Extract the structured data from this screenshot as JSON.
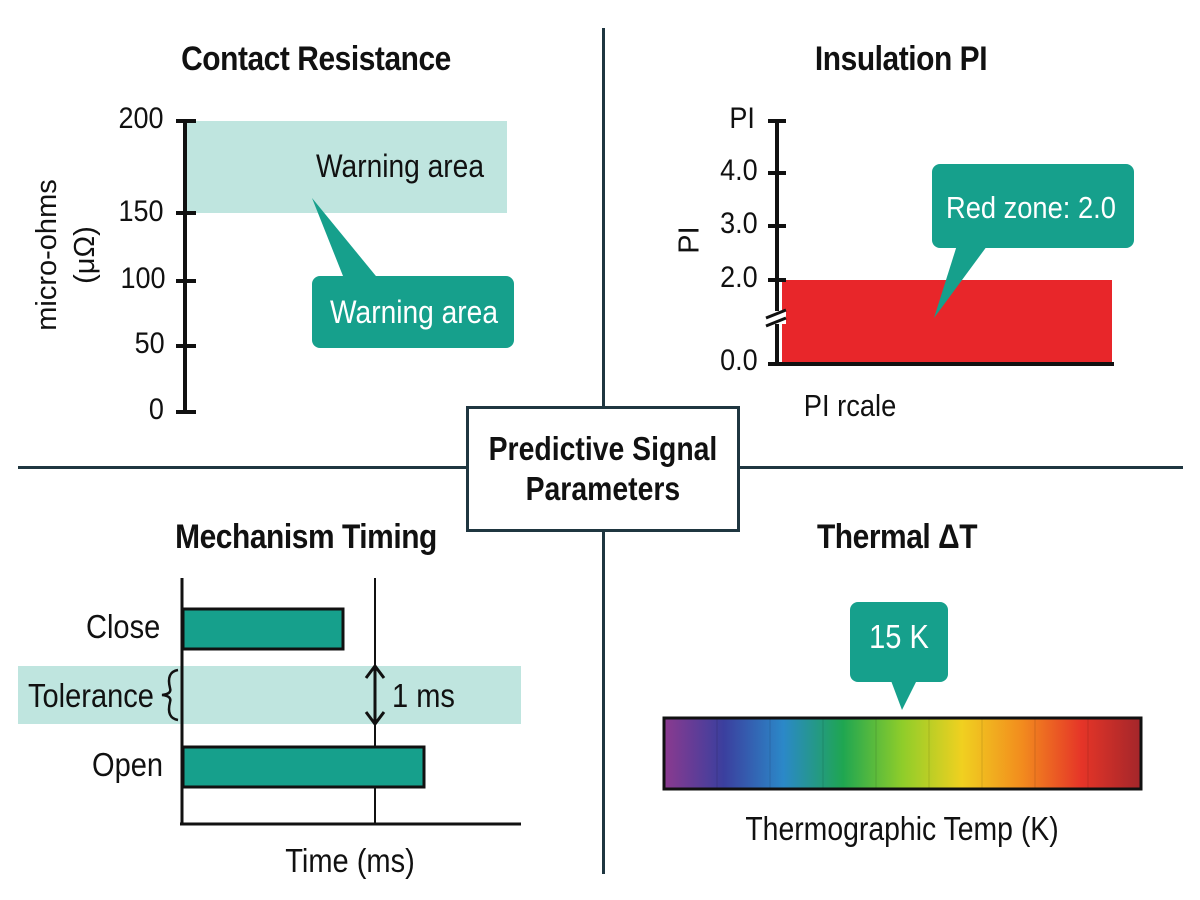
{
  "center_title": {
    "line1": "Predictive Signal",
    "line2": "Parameters"
  },
  "contact_resistance": {
    "title": "Contact Resistance",
    "ylabel_line1": "micro-ohms",
    "ylabel_line2": "(μΩ)",
    "ticks": [
      "200",
      "150",
      "100",
      "50",
      "0"
    ],
    "band_label": "Warning area",
    "callout_label": "Warning area"
  },
  "insulation_pi": {
    "title": "Insulation PI",
    "axis_top_label": "PI",
    "ylabel": "PI",
    "ticks": [
      "4.0",
      "3.0",
      "2.0",
      "0.0"
    ],
    "callout_label": "Red zone: 2.0",
    "xlabel": "PI rcale"
  },
  "mechanism_timing": {
    "title": "Mechanism Timing",
    "rows": [
      {
        "label": "Close",
        "value": 0.55
      },
      {
        "label": "Open",
        "value": 0.83
      }
    ],
    "tolerance_label": "Tolerance",
    "tolerance_value": "1 ms",
    "xlabel": "Time (ms)"
  },
  "thermal": {
    "title": "Thermal ΔT",
    "callout_label": "15 K",
    "xlabel": "Thermographic Temp (K)",
    "gradient_colors": [
      "#8b3a8f",
      "#3b3f9e",
      "#2b88c8",
      "#1fa651",
      "#8fcd2a",
      "#f0d020",
      "#f28c1e",
      "#e53528",
      "#a3262a"
    ]
  },
  "colors": {
    "teal": "#16a08c",
    "band": "#bfe5df",
    "red": "#e8262a",
    "dark": "#1f3640"
  }
}
